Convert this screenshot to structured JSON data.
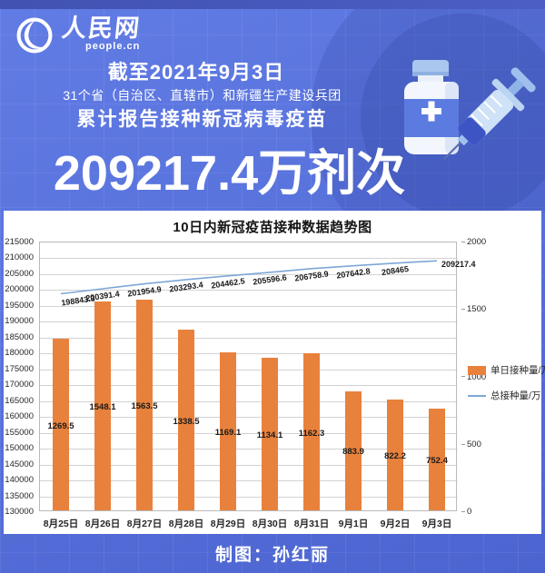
{
  "header": {
    "logo": {
      "brand": "人民网",
      "domain": "people.cn"
    },
    "date_line": "截至2021年9月3日",
    "subtitle1": "31个省（自治区、直辖市）和新疆生产建设兵团",
    "subtitle2": "累计报告接种新冠病毒疫苗",
    "headline_number": "209217.4万剂次"
  },
  "chart_data": {
    "type": "bar",
    "title": "10日内新冠疫苗接种数据趋势图",
    "categories": [
      "8月25日",
      "8月26日",
      "8月27日",
      "8月28日",
      "8月29日",
      "8月30日",
      "8月31日",
      "9月1日",
      "9月2日",
      "9月3日"
    ],
    "series": [
      {
        "name": "单日接种量/万",
        "type": "bar",
        "axis": "right",
        "color": "#E8813C",
        "values": [
          1269.5,
          1548.1,
          1563.5,
          1338.5,
          1169.1,
          1134.1,
          1162.3,
          883.9,
          822.2,
          752.4
        ]
      },
      {
        "name": "总接种量/万",
        "type": "line",
        "axis": "left",
        "color": "#7EA6D8",
        "values": [
          198843.3,
          200391.4,
          201954.9,
          203293.4,
          204462.5,
          205596.6,
          206758.9,
          207642.8,
          208465,
          209217.4
        ]
      }
    ],
    "left_axis": {
      "min": 130000,
      "max": 215000,
      "step": 5000
    },
    "right_axis": {
      "min": 0,
      "max": 2000,
      "step": 500
    },
    "legend_position": "right",
    "grid": true
  },
  "footer": {
    "credit": "制图：孙红丽"
  },
  "colors": {
    "background_top": "#617CE5",
    "background_bottom": "#4C64D0",
    "top_strip": "#4152B2",
    "panel": "#FFFFFF",
    "bar": "#E8813C",
    "line": "#7EA6D8",
    "gridline": "#D2D2D2",
    "text_on_blue": "#FFFFFF"
  }
}
